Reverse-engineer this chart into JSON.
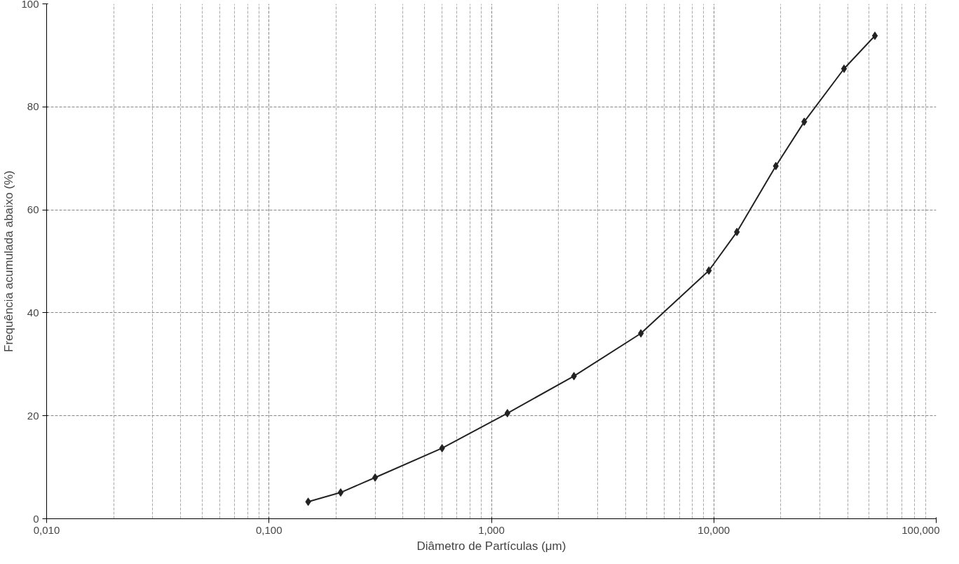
{
  "chart_data": {
    "type": "line",
    "xlabel": "Diâmetro de Partículas (μm)",
    "ylabel": "Frequência acumulada abaixo (%)",
    "log": "x",
    "grid": true,
    "marker": "diamond",
    "line_style": "solid",
    "xlim": [
      0.01,
      100
    ],
    "ylim": [
      0,
      100
    ],
    "xticks": [
      {
        "value": 0.01,
        "label": "0,010"
      },
      {
        "value": 0.1,
        "label": "0,100"
      },
      {
        "value": 1,
        "label": "1,000"
      },
      {
        "value": 10,
        "label": "10,000"
      },
      {
        "value": 100,
        "label": "100,000"
      }
    ],
    "yticks": [
      0,
      20,
      40,
      60,
      80,
      100
    ],
    "series": [
      {
        "color": "#222222",
        "x": [
          0.15,
          0.21,
          0.3,
          0.6,
          1.18,
          2.35,
          4.7,
          9.5,
          12.7,
          19,
          25.5,
          38.5,
          53
        ],
        "values": [
          3.3,
          5.1,
          8,
          13.7,
          20.5,
          27.7,
          36,
          48.2,
          55.7,
          68.5,
          77.1,
          87.4,
          93.8
        ]
      }
    ]
  }
}
